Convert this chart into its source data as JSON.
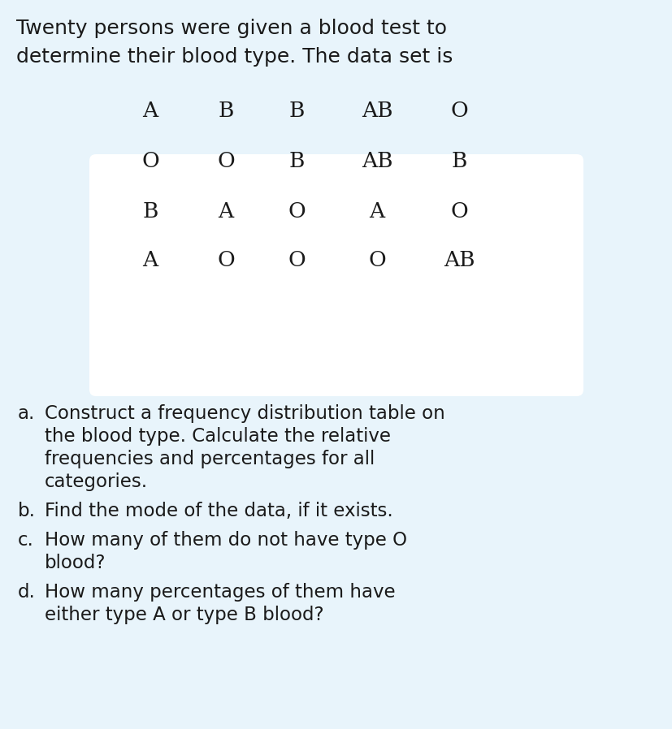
{
  "background_color": "#e8f4fb",
  "intro_text_line1": "Twenty persons were given a blood test to",
  "intro_text_line2": "determine their blood type. The data set is",
  "data_grid": [
    [
      "A",
      "B",
      "B",
      "AB",
      "O"
    ],
    [
      "O",
      "O",
      "B",
      "AB",
      "B"
    ],
    [
      "B",
      "A",
      "O",
      "A",
      "O"
    ],
    [
      "A",
      "O",
      "O",
      "O",
      "AB"
    ]
  ],
  "grid_bg_color": "#ffffff",
  "grid_text_color": "#1a1a1a",
  "grid_fontsize": 19,
  "intro_fontsize": 18,
  "question_fontsize": 16.5,
  "question_color": "#1a1a1a"
}
